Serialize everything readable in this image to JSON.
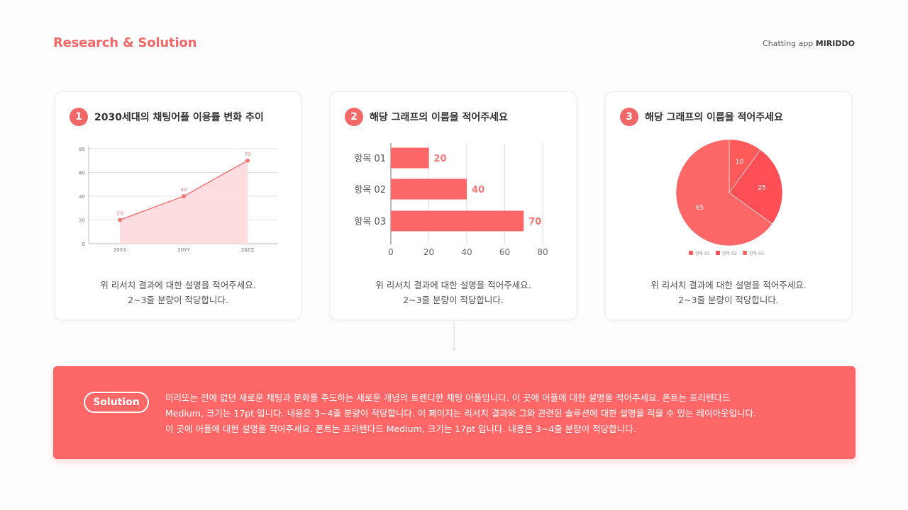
{
  "header": {
    "title": "Research & Solution",
    "brand_prefix": "Chatting app ",
    "brand_name": "MIRIDDO"
  },
  "cards": [
    {
      "number": "1",
      "title": "2030세대의 채팅어플 이용률 변화 추이",
      "desc_line1": "위 리서치 결과에 대한 설명을 적어주세요.",
      "desc_line2": "2~3줄 분량이 적당합니다."
    },
    {
      "number": "2",
      "title": "해당 그래프의 이름을 적어주세요",
      "desc_line1": "위 리서치 결과에 대한 설명을 적어주세요.",
      "desc_line2": "2~3줄 분량이 적당합니다."
    },
    {
      "number": "3",
      "title": "해당 그래프의 이름을 적어주세요",
      "desc_line1": "위 리서치 결과에 대한 설명을 적어주세요.",
      "desc_line2": "2~3줄 분량이 적당합니다."
    }
  ],
  "solution": {
    "badge": "Solution",
    "line1": "미리또는 전에 없던 새로운 채팅과 문화를 주도하는 새로운 개념의 트렌디한 채팅 어플입니다. 이 곳에 어플에 대한 설명을 적어주세요. 폰트는 프리텐다드",
    "line2": "Medium, 크기는 17pt 입니다. 내용은 3~4줄 분량이 적당합니다. 이 페이지는 리서치 결과와 그와 관련된 솔루션에 대한 설명을 적을 수 있는 레이아웃입니다.",
    "line3": "이 곳에 어플에 대한 설명을 적어주세요. 폰트는 프리텐다드 Medium, 크기는 17pt 입니다. 내용은 3~4줄 분량이 적당합니다."
  },
  "colors": {
    "accent": "#f26767",
    "panel": "#fe6767",
    "area_fill": "#fdd9dc",
    "line": "#f27878",
    "bar": "#fe6767",
    "pie": [
      "#fe5a5a",
      "#fe4f57",
      "#fe6767"
    ]
  },
  "chart_data": [
    {
      "type": "area",
      "categories": [
        "20XX",
        "20YY",
        "20ZZ"
      ],
      "values": [
        20,
        40,
        70
      ],
      "ylim": [
        0,
        80
      ],
      "yticks": [
        0,
        20,
        40,
        60,
        80
      ],
      "data_labels": true,
      "grid": true
    },
    {
      "type": "bar",
      "orientation": "horizontal",
      "categories": [
        "항목 01",
        "항목 02",
        "항목 03"
      ],
      "values": [
        20,
        40,
        70
      ],
      "xlim": [
        0,
        80
      ],
      "xticks": [
        0,
        20,
        40,
        60,
        80
      ],
      "data_labels": true,
      "grid": true
    },
    {
      "type": "pie",
      "labels": [
        "항목 01",
        "항목 02",
        "항목 03"
      ],
      "values": [
        10,
        25,
        65
      ],
      "legend": "bottom",
      "data_labels": true
    }
  ]
}
